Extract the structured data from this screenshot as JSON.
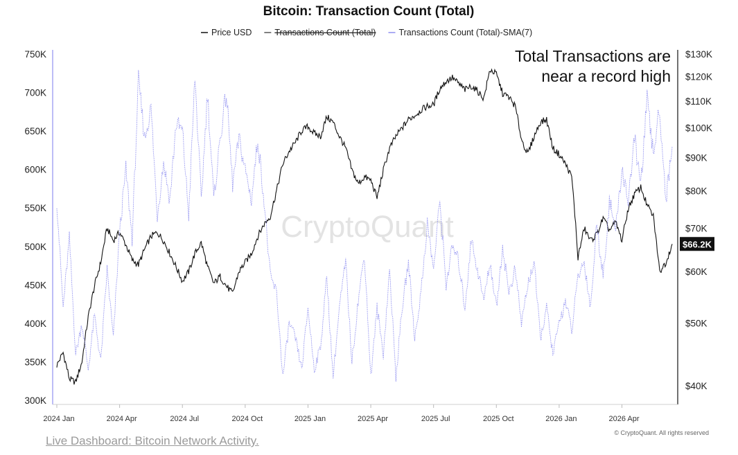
{
  "chart_data": {
    "type": "line",
    "title": "Bitcoin: Transaction Count (Total)",
    "legend": {
      "position": "top-center",
      "entries": [
        {
          "label": "Price USD",
          "color": "#111111",
          "strikethrough": false
        },
        {
          "label": "Transactions Count (Total)",
          "color": "#555555",
          "strikethrough": true
        },
        {
          "label": "Transactions Count (Total)-SMA(7)",
          "color": "#8f8ff0",
          "strikethrough": false
        }
      ]
    },
    "x_axis": {
      "start": "2024-01",
      "end": "2026-06",
      "ticks": [
        {
          "label": "2024 Jan",
          "t": 0
        },
        {
          "label": "2024 Apr",
          "t": 3
        },
        {
          "label": "2024 Jul",
          "t": 6
        },
        {
          "label": "2024 Oct",
          "t": 9
        },
        {
          "label": "2025 Jan",
          "t": 12
        },
        {
          "label": "2025 Apr",
          "t": 15
        },
        {
          "label": "2025 Jul",
          "t": 18
        },
        {
          "label": "2025 Oct",
          "t": 21
        },
        {
          "label": "2026 Jan",
          "t": 24
        },
        {
          "label": "2026 Apr",
          "t": 27
        }
      ]
    },
    "y_left": {
      "label": "",
      "range": [
        300000,
        750000
      ],
      "ticks": [
        {
          "label": "300K",
          "v": 300000
        },
        {
          "label": "350K",
          "v": 350000
        },
        {
          "label": "400K",
          "v": 400000
        },
        {
          "label": "450K",
          "v": 450000
        },
        {
          "label": "500K",
          "v": 500000
        },
        {
          "label": "550K",
          "v": 550000
        },
        {
          "label": "600K",
          "v": 600000
        },
        {
          "label": "650K",
          "v": 650000
        },
        {
          "label": "700K",
          "v": 700000
        },
        {
          "label": "750K",
          "v": 750000
        }
      ]
    },
    "y_right": {
      "label": "",
      "scale": "log",
      "range": [
        37000,
        132000
      ],
      "ticks": [
        {
          "label": "$40K",
          "v": 40000
        },
        {
          "label": "$50K",
          "v": 50000
        },
        {
          "label": "$60K",
          "v": 60000
        },
        {
          "label": "$70K",
          "v": 70000
        },
        {
          "label": "$80K",
          "v": 80000
        },
        {
          "label": "$90K",
          "v": 90000
        },
        {
          "label": "$100K",
          "v": 100000
        },
        {
          "label": "$110K",
          "v": 110000
        },
        {
          "label": "$120K",
          "v": 120000
        },
        {
          "label": "$130K",
          "v": 130000
        }
      ]
    },
    "current_price_label": "$66.2K",
    "current_price_value": 66200,
    "series": [
      {
        "name": "Price USD",
        "axis": "right",
        "color": "#111111",
        "t": [
          0,
          0.3,
          0.6,
          0.9,
          1.2,
          1.5,
          1.8,
          2.1,
          2.4,
          2.7,
          3.0,
          3.3,
          3.6,
          3.9,
          4.2,
          4.5,
          4.8,
          5.1,
          5.4,
          5.7,
          6.0,
          6.3,
          6.6,
          6.9,
          7.2,
          7.5,
          7.8,
          8.1,
          8.4,
          8.7,
          9.0,
          9.3,
          9.6,
          9.9,
          10.2,
          10.5,
          10.8,
          11.1,
          11.4,
          11.7,
          12.0,
          12.3,
          12.6,
          12.9,
          13.2,
          13.5,
          13.8,
          14.1,
          14.4,
          14.7,
          15.0,
          15.3,
          15.6,
          15.9,
          16.2,
          16.5,
          16.8,
          17.1,
          17.4,
          17.7,
          18.0,
          18.3,
          18.6,
          18.9,
          19.2,
          19.5,
          19.8,
          20.1,
          20.4,
          20.7,
          21.0,
          21.3,
          21.6,
          21.9,
          22.2,
          22.5,
          22.8,
          23.1,
          23.4,
          23.7,
          24.0,
          24.3,
          24.6,
          24.9,
          25.2,
          25.5,
          25.8,
          26.1,
          26.4,
          26.7,
          27.0,
          27.3,
          27.6,
          27.9,
          28.2,
          28.5,
          28.8,
          29.1,
          29.4
        ],
        "values": [
          43000,
          45000,
          41000,
          40500,
          43500,
          51000,
          57000,
          62000,
          70000,
          67000,
          69000,
          66000,
          62500,
          61500,
          65000,
          68000,
          69000,
          67000,
          64000,
          61000,
          58000,
          60000,
          64000,
          66500,
          61000,
          57500,
          59000,
          57000,
          55500,
          60000,
          62000,
          64000,
          68000,
          71000,
          73000,
          80000,
          88000,
          92000,
          95000,
          99000,
          100500,
          98000,
          97000,
          104000,
          102000,
          97000,
          93000,
          86000,
          82000,
          84000,
          83000,
          78000,
          86000,
          93000,
          97000,
          100000,
          103000,
          104500,
          106500,
          108000,
          108500,
          115000,
          118000,
          119500,
          117000,
          114500,
          116000,
          114000,
          111000,
          123000,
          121000,
          113000,
          111500,
          108000,
          96000,
          91000,
          97000,
          102000,
          103000,
          93000,
          91000,
          88000,
          84000,
          63000,
          70000,
          67000,
          68500,
          72500,
          69500,
          71500,
          67000,
          75000,
          79000,
          81000,
          76000,
          73000,
          60000,
          62000,
          66200
        ]
      },
      {
        "name": "Transactions Count (Total)-SMA(7)",
        "axis": "left",
        "color": "#8f8ff0",
        "t": [
          0,
          0.3,
          0.6,
          0.9,
          1.2,
          1.5,
          1.8,
          2.1,
          2.4,
          2.7,
          3.0,
          3.3,
          3.6,
          3.9,
          4.2,
          4.5,
          4.8,
          5.1,
          5.4,
          5.7,
          6.0,
          6.3,
          6.6,
          6.9,
          7.2,
          7.5,
          7.8,
          8.1,
          8.4,
          8.7,
          9.0,
          9.3,
          9.6,
          9.9,
          10.2,
          10.5,
          10.8,
          11.1,
          11.4,
          11.7,
          12.0,
          12.3,
          12.6,
          12.9,
          13.2,
          13.5,
          13.8,
          14.1,
          14.4,
          14.7,
          15.0,
          15.3,
          15.6,
          15.9,
          16.2,
          16.5,
          16.8,
          17.1,
          17.4,
          17.7,
          18.0,
          18.3,
          18.6,
          18.9,
          19.2,
          19.5,
          19.8,
          20.1,
          20.4,
          20.7,
          21.0,
          21.3,
          21.6,
          21.9,
          22.2,
          22.5,
          22.8,
          23.1,
          23.4,
          23.7,
          24.0,
          24.3,
          24.6,
          24.9,
          25.2,
          25.5,
          25.8,
          26.1,
          26.4,
          26.7,
          27.0,
          27.3,
          27.6,
          27.9,
          28.2,
          28.5,
          28.8,
          29.1,
          29.4
        ],
        "values": [
          560000,
          420000,
          510000,
          360000,
          400000,
          340000,
          410000,
          350000,
          470000,
          380000,
          520000,
          600000,
          510000,
          715000,
          640000,
          680000,
          540000,
          610000,
          560000,
          660000,
          650000,
          540000,
          720000,
          560000,
          700000,
          560000,
          640000,
          700000,
          580000,
          640000,
          600000,
          560000,
          640000,
          560000,
          460000,
          440000,
          330000,
          400000,
          380000,
          340000,
          420000,
          340000,
          370000,
          460000,
          330000,
          420000,
          480000,
          350000,
          430000,
          490000,
          330000,
          420000,
          360000,
          470000,
          330000,
          420000,
          480000,
          380000,
          440000,
          530000,
          470000,
          560000,
          450000,
          500000,
          480000,
          420000,
          510000,
          470000,
          430000,
          480000,
          420000,
          500000,
          440000,
          470000,
          400000,
          450000,
          480000,
          380000,
          420000,
          360000,
          400000,
          430000,
          390000,
          460000,
          480000,
          420000,
          530000,
          460000,
          560000,
          520000,
          600000,
          560000,
          640000,
          580000,
          690000,
          620000,
          680000,
          560000,
          630000
        ]
      }
    ],
    "annotation": {
      "lines": [
        "Total Transactions are",
        "near a record high"
      ],
      "position": "top-right"
    },
    "watermark": "CryptoQuant",
    "copyright": "© CryptoQuant. All rights reserved"
  },
  "footer": {
    "link_text": "Live Dashboard: Bitcoin Network Activity."
  }
}
